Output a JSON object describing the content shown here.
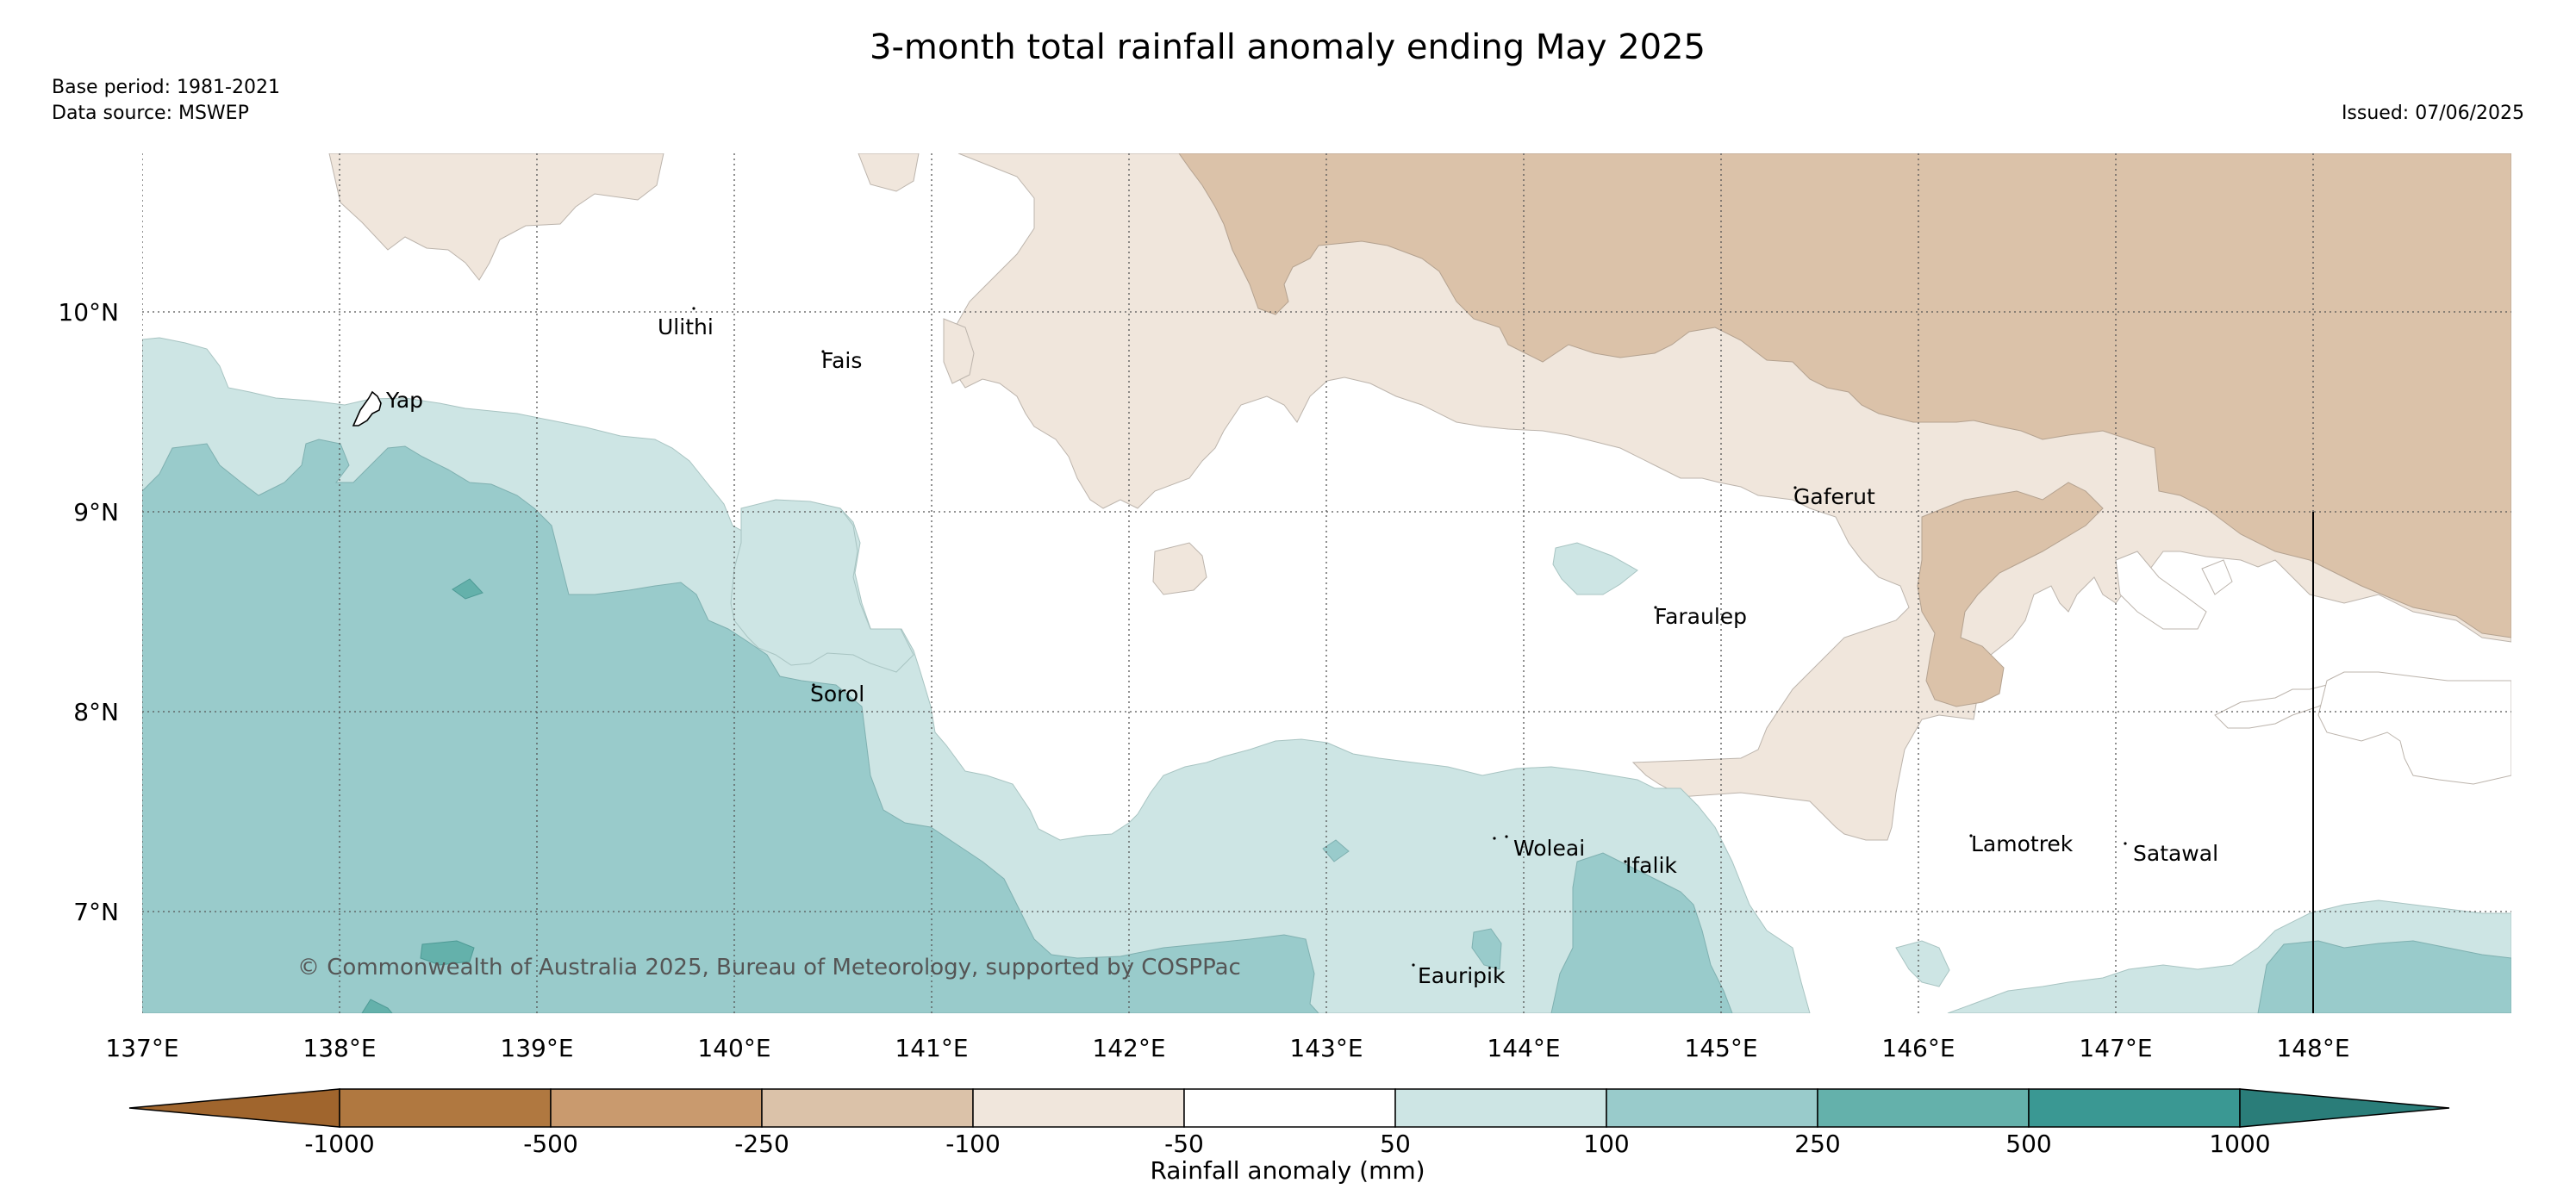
{
  "title": "3-month total rainfall anomaly ending May 2025",
  "meta": {
    "base_period": "Base period: 1981-2021",
    "data_source": "Data source: MSWEP",
    "issued": "Issued: 07/06/2025"
  },
  "axes": {
    "lon_labels": [
      "137°E",
      "138°E",
      "139°E",
      "140°E",
      "141°E",
      "142°E",
      "143°E",
      "144°E",
      "145°E",
      "146°E",
      "147°E",
      "148°E"
    ],
    "lat_labels": [
      "10°N",
      "9°N",
      "8°N",
      "7°N"
    ],
    "gridlines": "dotted"
  },
  "places": [
    {
      "name": "Yap",
      "lon": 138.2,
      "lat": 9.55
    },
    {
      "name": "Ulithi",
      "lon": 139.75,
      "lat": 9.95
    },
    {
      "name": "Fais",
      "lon": 140.5,
      "lat": 9.77
    },
    {
      "name": "Sorol",
      "lon": 140.4,
      "lat": 8.13
    },
    {
      "name": "Gaferut",
      "lon": 145.4,
      "lat": 9.07
    },
    {
      "name": "Faraulep",
      "lon": 144.65,
      "lat": 8.5
    },
    {
      "name": "Woleai",
      "lon": 143.93,
      "lat": 7.35
    },
    {
      "name": "Ifalik",
      "lon": 144.5,
      "lat": 7.23
    },
    {
      "name": "Lamotrek",
      "lon": 146.25,
      "lat": 7.37
    },
    {
      "name": "Satawal",
      "lon": 147.05,
      "lat": 7.31
    },
    {
      "name": "Eauripik",
      "lon": 143.45,
      "lat": 6.68
    }
  ],
  "copyright": "© Commonwealth of Australia 2025, Bureau of Meteorology, supported by COSPPac",
  "colorbar": {
    "label": "Rainfall anomaly (mm)",
    "ticks": [
      "-1000",
      "-500",
      "-250",
      "-100",
      "-50",
      "50",
      "100",
      "250",
      "500",
      "1000"
    ],
    "extend": "both",
    "colors": [
      "#a0652d",
      "#b07840",
      "#c99a6e",
      "#dbc2a9",
      "#f0e6dc",
      "#ffffff",
      "#cde5e4",
      "#99cbcb",
      "#64b1ab",
      "#3a9893",
      "#2a7d79"
    ]
  },
  "colors": {
    "strong_wet": "#64b1ab",
    "wet": "#99cbcb",
    "moderate_wet": "#cde5e4",
    "light_dry": "#f0e6dc",
    "moderate_dry": "#dbc2a9"
  }
}
